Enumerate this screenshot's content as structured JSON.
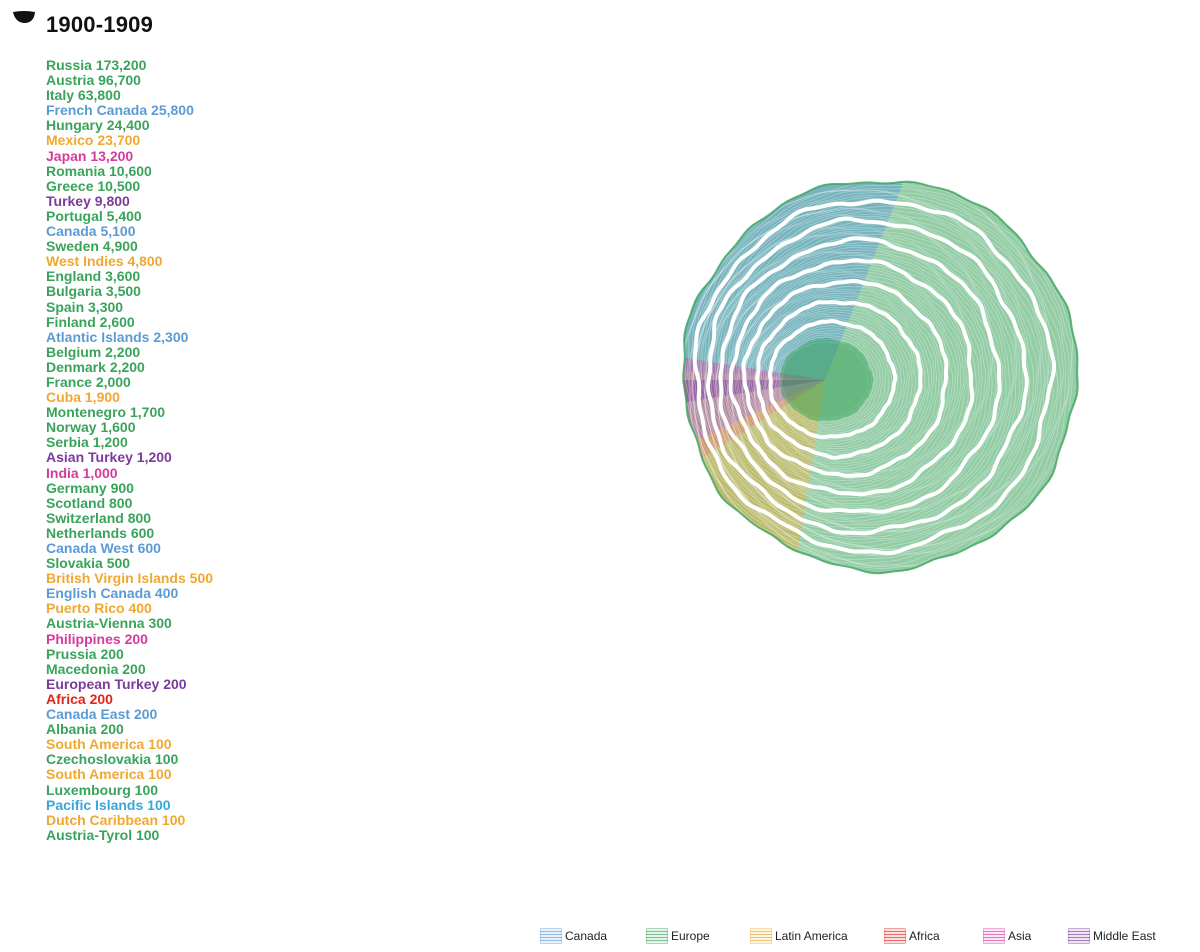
{
  "header": {
    "decade": "1900-1909"
  },
  "colors": {
    "canada": "#5b9bd5",
    "europe": "#3aa35b",
    "latin_america": "#f0a830",
    "africa": "#e0251b",
    "asia": "#d63a9c",
    "middle_east": "#7a3b9c",
    "pacific": "#35a8d8"
  },
  "chart_data": {
    "type": "tree-ring",
    "title": "1900-1909",
    "unit": "immigrants",
    "entries": [
      {
        "label": "Russia",
        "value": "173,200",
        "region": "europe"
      },
      {
        "label": "Austria",
        "value": "96,700",
        "region": "europe"
      },
      {
        "label": "Italy",
        "value": "63,800",
        "region": "europe"
      },
      {
        "label": "French Canada",
        "value": "25,800",
        "region": "canada"
      },
      {
        "label": "Hungary",
        "value": "24,400",
        "region": "europe"
      },
      {
        "label": "Mexico",
        "value": "23,700",
        "region": "latin_america"
      },
      {
        "label": "Japan",
        "value": "13,200",
        "region": "asia"
      },
      {
        "label": "Romania",
        "value": "10,600",
        "region": "europe"
      },
      {
        "label": "Greece",
        "value": "10,500",
        "region": "europe"
      },
      {
        "label": "Turkey",
        "value": "9,800",
        "region": "middle_east"
      },
      {
        "label": "Portugal",
        "value": "5,400",
        "region": "europe"
      },
      {
        "label": "Canada",
        "value": "5,100",
        "region": "canada"
      },
      {
        "label": "Sweden",
        "value": "4,900",
        "region": "europe"
      },
      {
        "label": "West Indies",
        "value": "4,800",
        "region": "latin_america"
      },
      {
        "label": "England",
        "value": "3,600",
        "region": "europe"
      },
      {
        "label": "Bulgaria",
        "value": "3,500",
        "region": "europe"
      },
      {
        "label": "Spain",
        "value": "3,300",
        "region": "europe"
      },
      {
        "label": "Finland",
        "value": "2,600",
        "region": "europe"
      },
      {
        "label": "Atlantic Islands",
        "value": "2,300",
        "region": "canada"
      },
      {
        "label": "Belgium",
        "value": "2,200",
        "region": "europe"
      },
      {
        "label": "Denmark",
        "value": "2,200",
        "region": "europe"
      },
      {
        "label": "France",
        "value": "2,000",
        "region": "europe"
      },
      {
        "label": "Cuba",
        "value": "1,900",
        "region": "latin_america"
      },
      {
        "label": "Montenegro",
        "value": "1,700",
        "region": "europe"
      },
      {
        "label": "Norway",
        "value": "1,600",
        "region": "europe"
      },
      {
        "label": "Serbia",
        "value": "1,200",
        "region": "europe"
      },
      {
        "label": "Asian Turkey",
        "value": "1,200",
        "region": "middle_east"
      },
      {
        "label": "India",
        "value": "1,000",
        "region": "asia"
      },
      {
        "label": "Germany",
        "value": "900",
        "region": "europe"
      },
      {
        "label": "Scotland",
        "value": "800",
        "region": "europe"
      },
      {
        "label": "Switzerland",
        "value": "800",
        "region": "europe"
      },
      {
        "label": "Netherlands",
        "value": "600",
        "region": "europe"
      },
      {
        "label": "Canada West",
        "value": "600",
        "region": "canada"
      },
      {
        "label": "Slovakia",
        "value": "500",
        "region": "europe"
      },
      {
        "label": "British Virgin Islands",
        "value": "500",
        "region": "latin_america"
      },
      {
        "label": "English Canada",
        "value": "400",
        "region": "canada"
      },
      {
        "label": "Puerto Rico",
        "value": "400",
        "region": "latin_america"
      },
      {
        "label": "Austria-Vienna",
        "value": "300",
        "region": "europe"
      },
      {
        "label": "Philippines",
        "value": "200",
        "region": "asia"
      },
      {
        "label": "Prussia",
        "value": "200",
        "region": "europe"
      },
      {
        "label": "Macedonia",
        "value": "200",
        "region": "europe"
      },
      {
        "label": "European Turkey",
        "value": "200",
        "region": "middle_east"
      },
      {
        "label": "Africa",
        "value": "200",
        "region": "africa"
      },
      {
        "label": "Canada East",
        "value": "200",
        "region": "canada"
      },
      {
        "label": "Albania",
        "value": "200",
        "region": "europe"
      },
      {
        "label": "South America",
        "value": "100",
        "region": "latin_america"
      },
      {
        "label": "Czechoslovakia",
        "value": "100",
        "region": "europe"
      },
      {
        "label": "South America",
        "value": "100",
        "region": "latin_america"
      },
      {
        "label": "Luxembourg",
        "value": "100",
        "region": "europe"
      },
      {
        "label": "Pacific Islands",
        "value": "100",
        "region": "pacific"
      },
      {
        "label": "Dutch Caribbean",
        "value": "100",
        "region": "latin_america"
      },
      {
        "label": "Austria-Tyrol",
        "value": "100",
        "region": "europe"
      }
    ],
    "rings": 8,
    "legend": [
      {
        "label": "Canada",
        "region": "canada"
      },
      {
        "label": "Europe",
        "region": "europe"
      },
      {
        "label": "Latin America",
        "region": "latin_america"
      },
      {
        "label": "Africa",
        "region": "africa"
      },
      {
        "label": "Asia",
        "region": "asia"
      },
      {
        "label": "Middle East",
        "region": "middle_east"
      }
    ],
    "legend_placement": "bottom-right"
  }
}
